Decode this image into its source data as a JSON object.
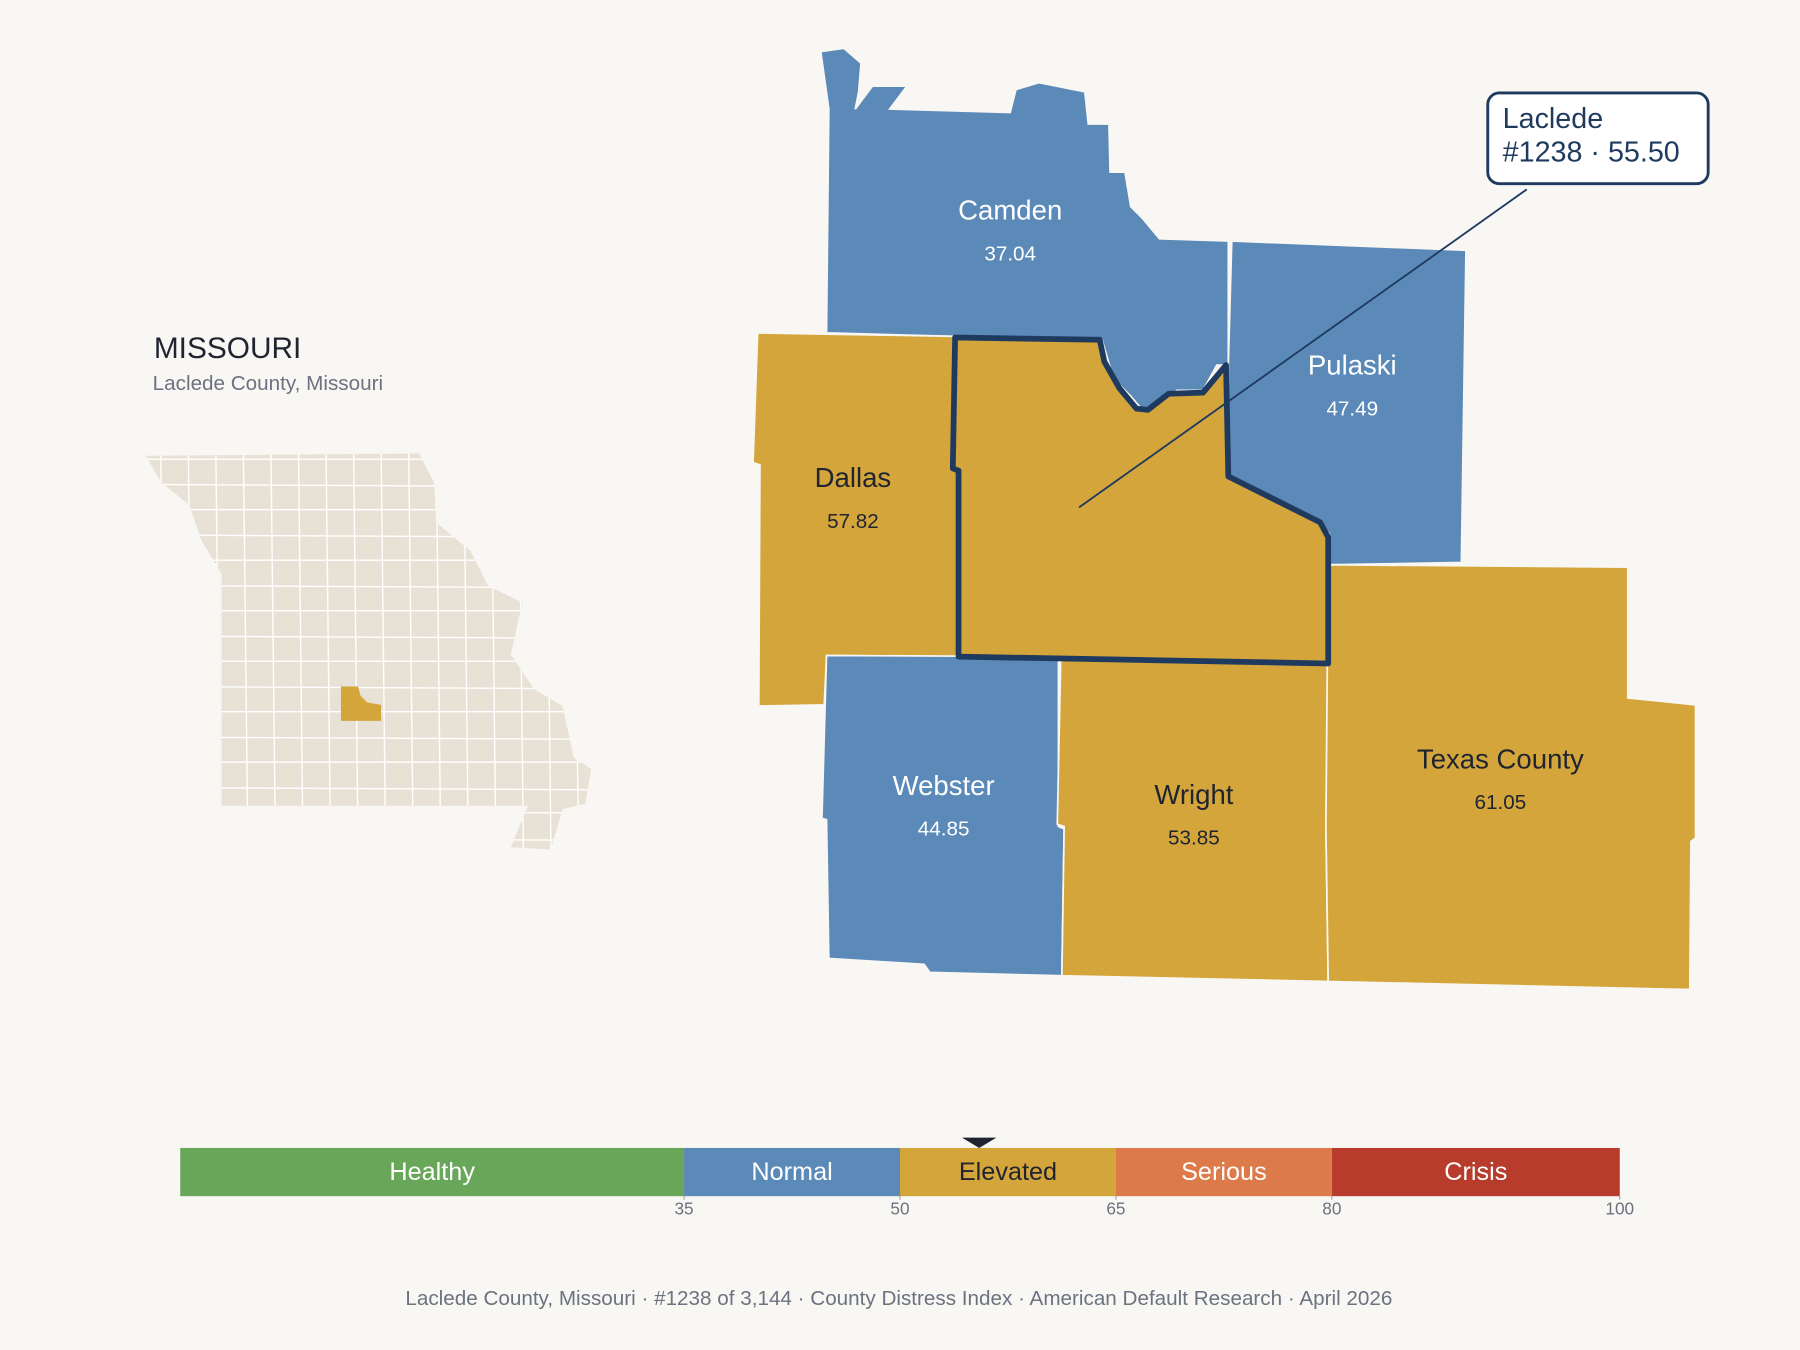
{
  "locator": {
    "title": "MISSOURI",
    "subtitle": "Laclede County, Missouri"
  },
  "map": {
    "counties": [
      {
        "name": "Camden",
        "value": 37.04
      },
      {
        "name": "Pulaski",
        "value": 47.49
      },
      {
        "name": "Dallas",
        "value": 57.82
      },
      {
        "name": "Webster",
        "value": 44.85
      },
      {
        "name": "Wright",
        "value": 53.85
      },
      {
        "name": "Texas County",
        "value": 61.05
      }
    ],
    "highlight": {
      "name": "Laclede",
      "value": 55.5
    },
    "callout": [
      "Laclede",
      "#1238 · 55.50"
    ]
  },
  "scale": {
    "lim": [
      0,
      100
    ],
    "ticks": [
      35,
      50,
      65,
      80,
      100
    ],
    "bands": [
      {
        "name": "Healthy",
        "color": "#68a75a"
      },
      {
        "name": "Normal",
        "color": "#5b8ab8"
      },
      {
        "name": "Elevated",
        "color": "#d4a53b"
      },
      {
        "name": "Serious",
        "color": "#dc7a4a"
      },
      {
        "name": "Crisis",
        "color": "#b83c2c"
      }
    ]
  },
  "footer": "Laclede County, Missouri  ·  #1238 of 3,144  ·  County Distress Index  ·  American Default Research  ·  April 2026"
}
